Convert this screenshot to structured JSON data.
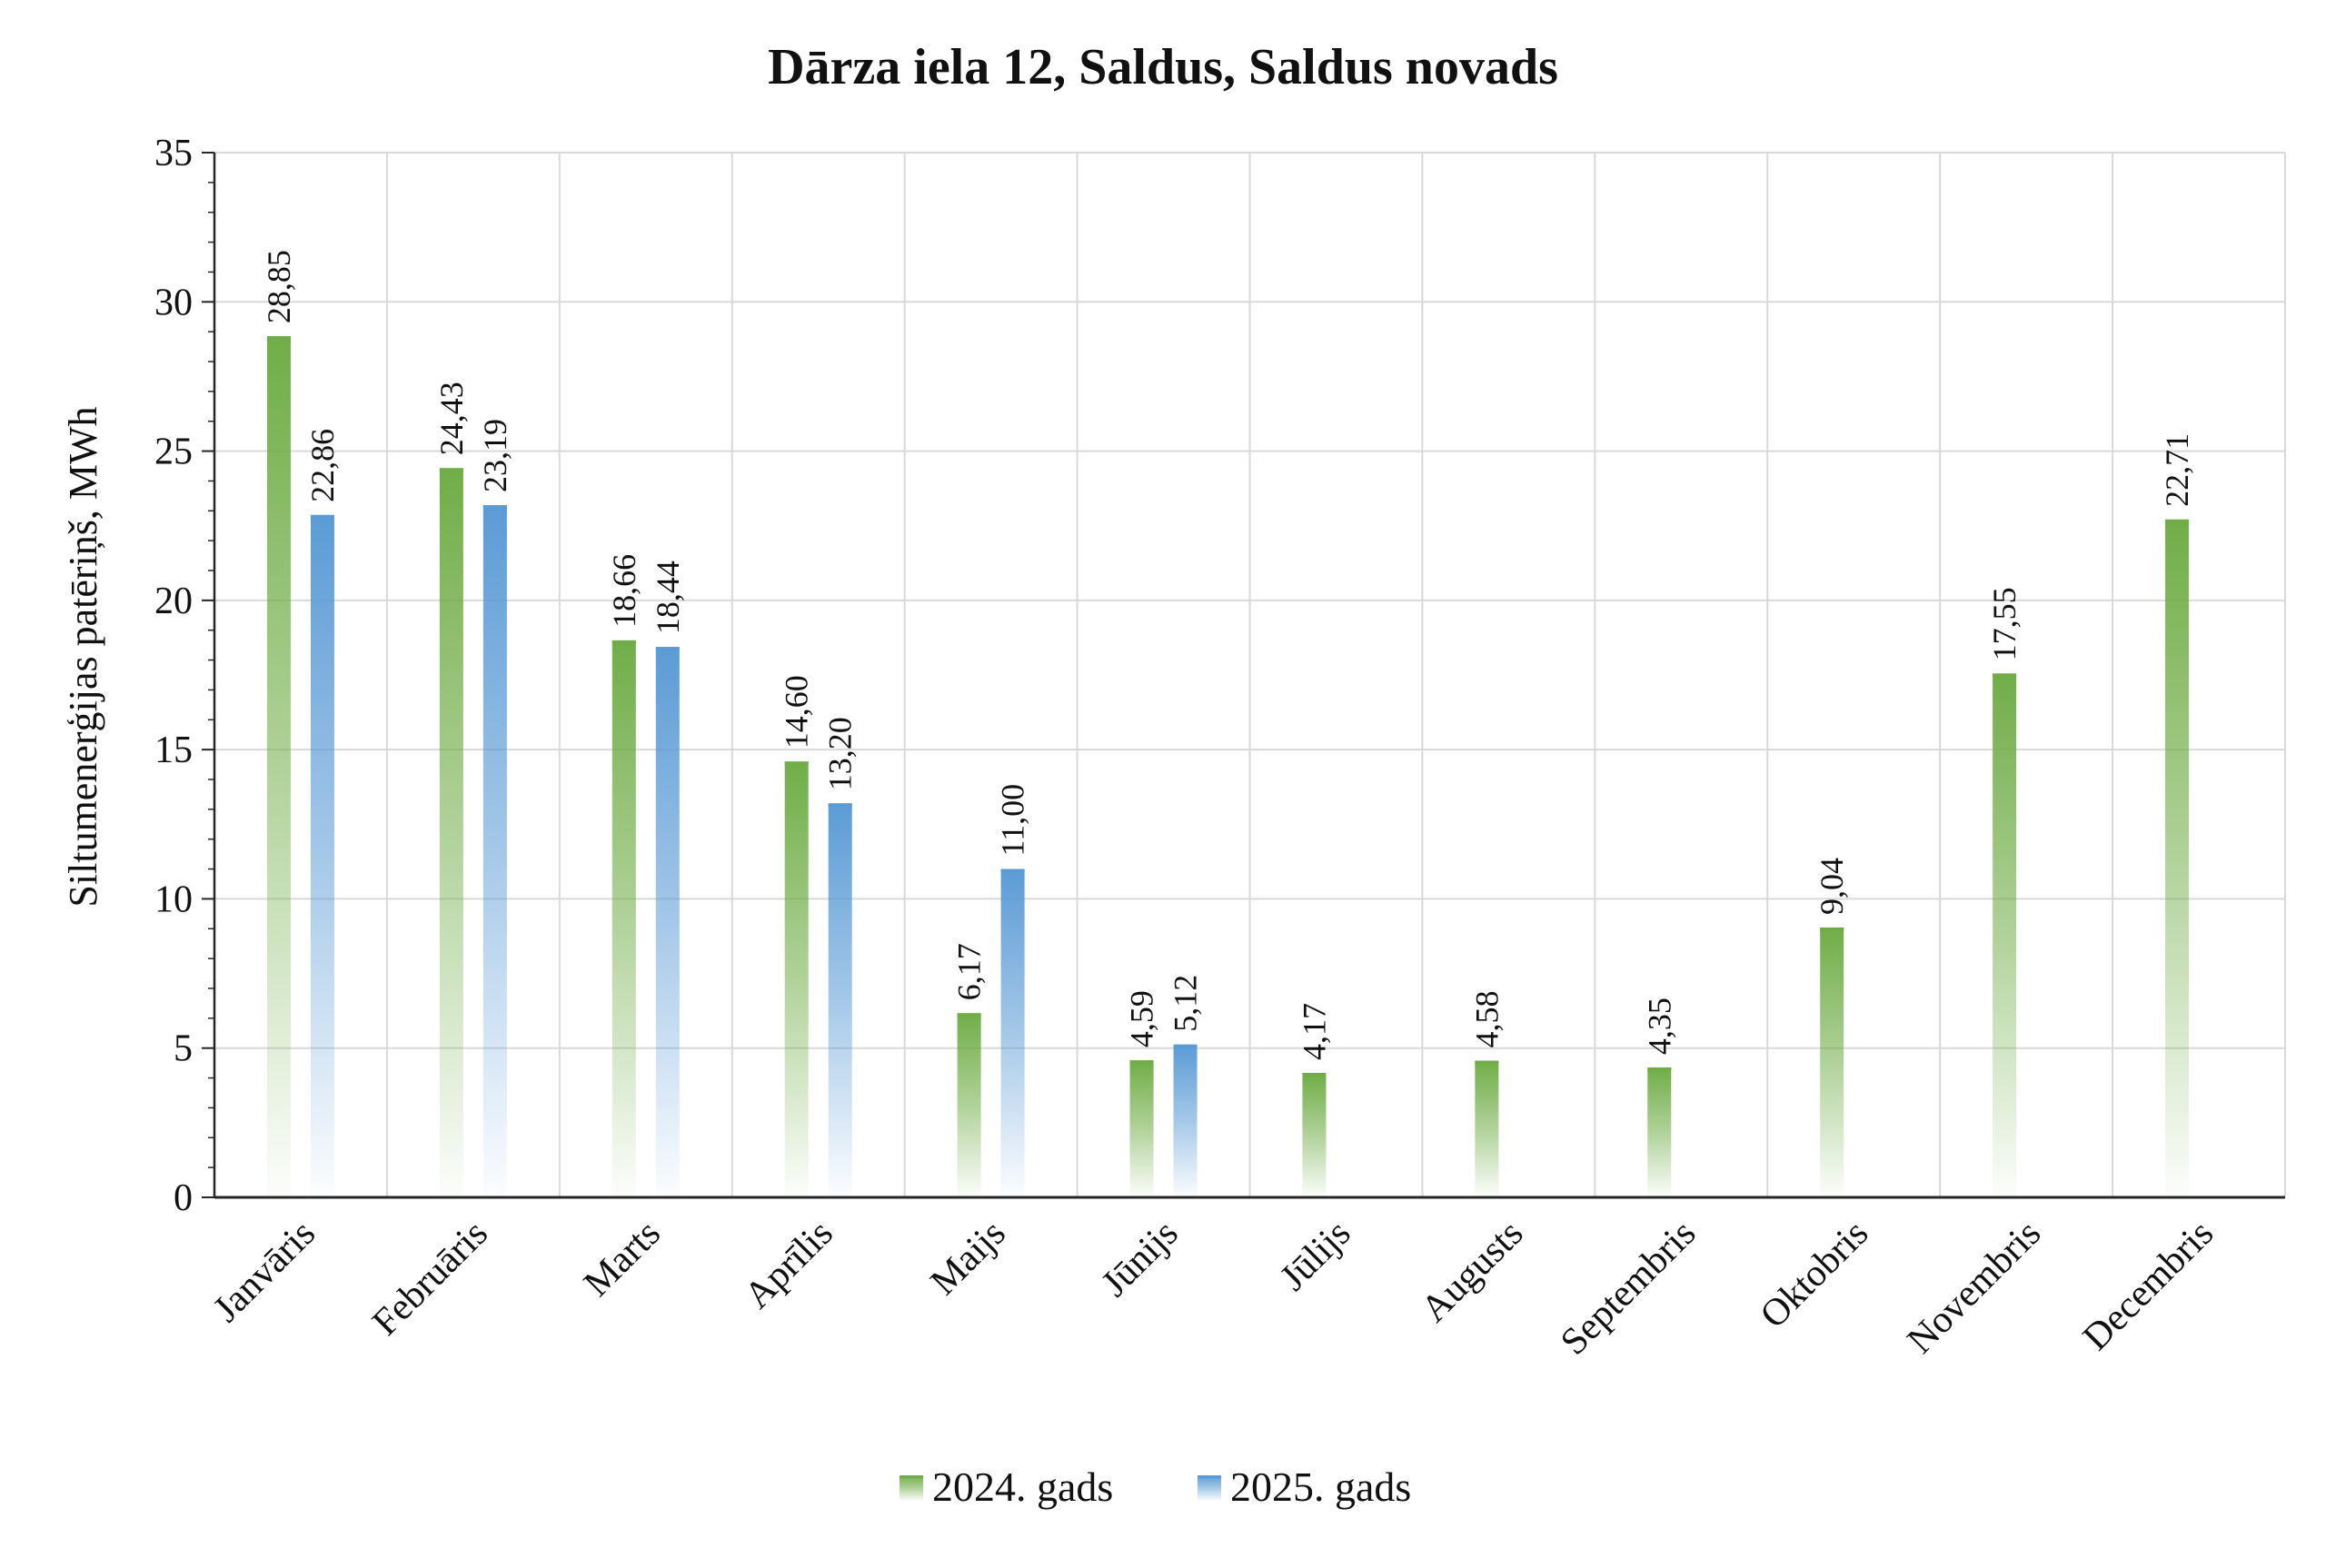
{
  "chart_data": {
    "type": "bar",
    "title": "Dārza iela 12, Saldus, Saldus novads",
    "xlabel": "",
    "ylabel": "Siltumenerģijas patēriņš, MWh",
    "ylim": [
      0,
      35
    ],
    "ytick_step": 5,
    "grid": true,
    "legend_position": "bottom",
    "categories": [
      "Janvāris",
      "Februāris",
      "Marts",
      "Aprīlis",
      "Maijs",
      "Jūnijs",
      "Jūlijs",
      "Augusts",
      "Septembris",
      "Oktobris",
      "Novembris",
      "Decembris"
    ],
    "series": [
      {
        "name": "2024. gads",
        "color": "#70ad47",
        "values": [
          28.85,
          24.43,
          18.66,
          14.6,
          6.17,
          4.59,
          4.17,
          4.58,
          4.35,
          9.04,
          17.55,
          22.71
        ],
        "labels": [
          "28,85",
          "24,43",
          "18,66",
          "14,60",
          "6,17",
          "4,59",
          "4,17",
          "4,58",
          "4,35",
          "9,04",
          "17,55",
          "22,71"
        ]
      },
      {
        "name": "2025. gads",
        "color": "#5b9bd5",
        "values": [
          22.86,
          23.19,
          18.44,
          13.2,
          11.0,
          5.12,
          null,
          null,
          null,
          null,
          null,
          null
        ],
        "labels": [
          "22,86",
          "23,19",
          "18,44",
          "13,20",
          "11,00",
          "5,12",
          null,
          null,
          null,
          null,
          null,
          null
        ]
      }
    ]
  }
}
